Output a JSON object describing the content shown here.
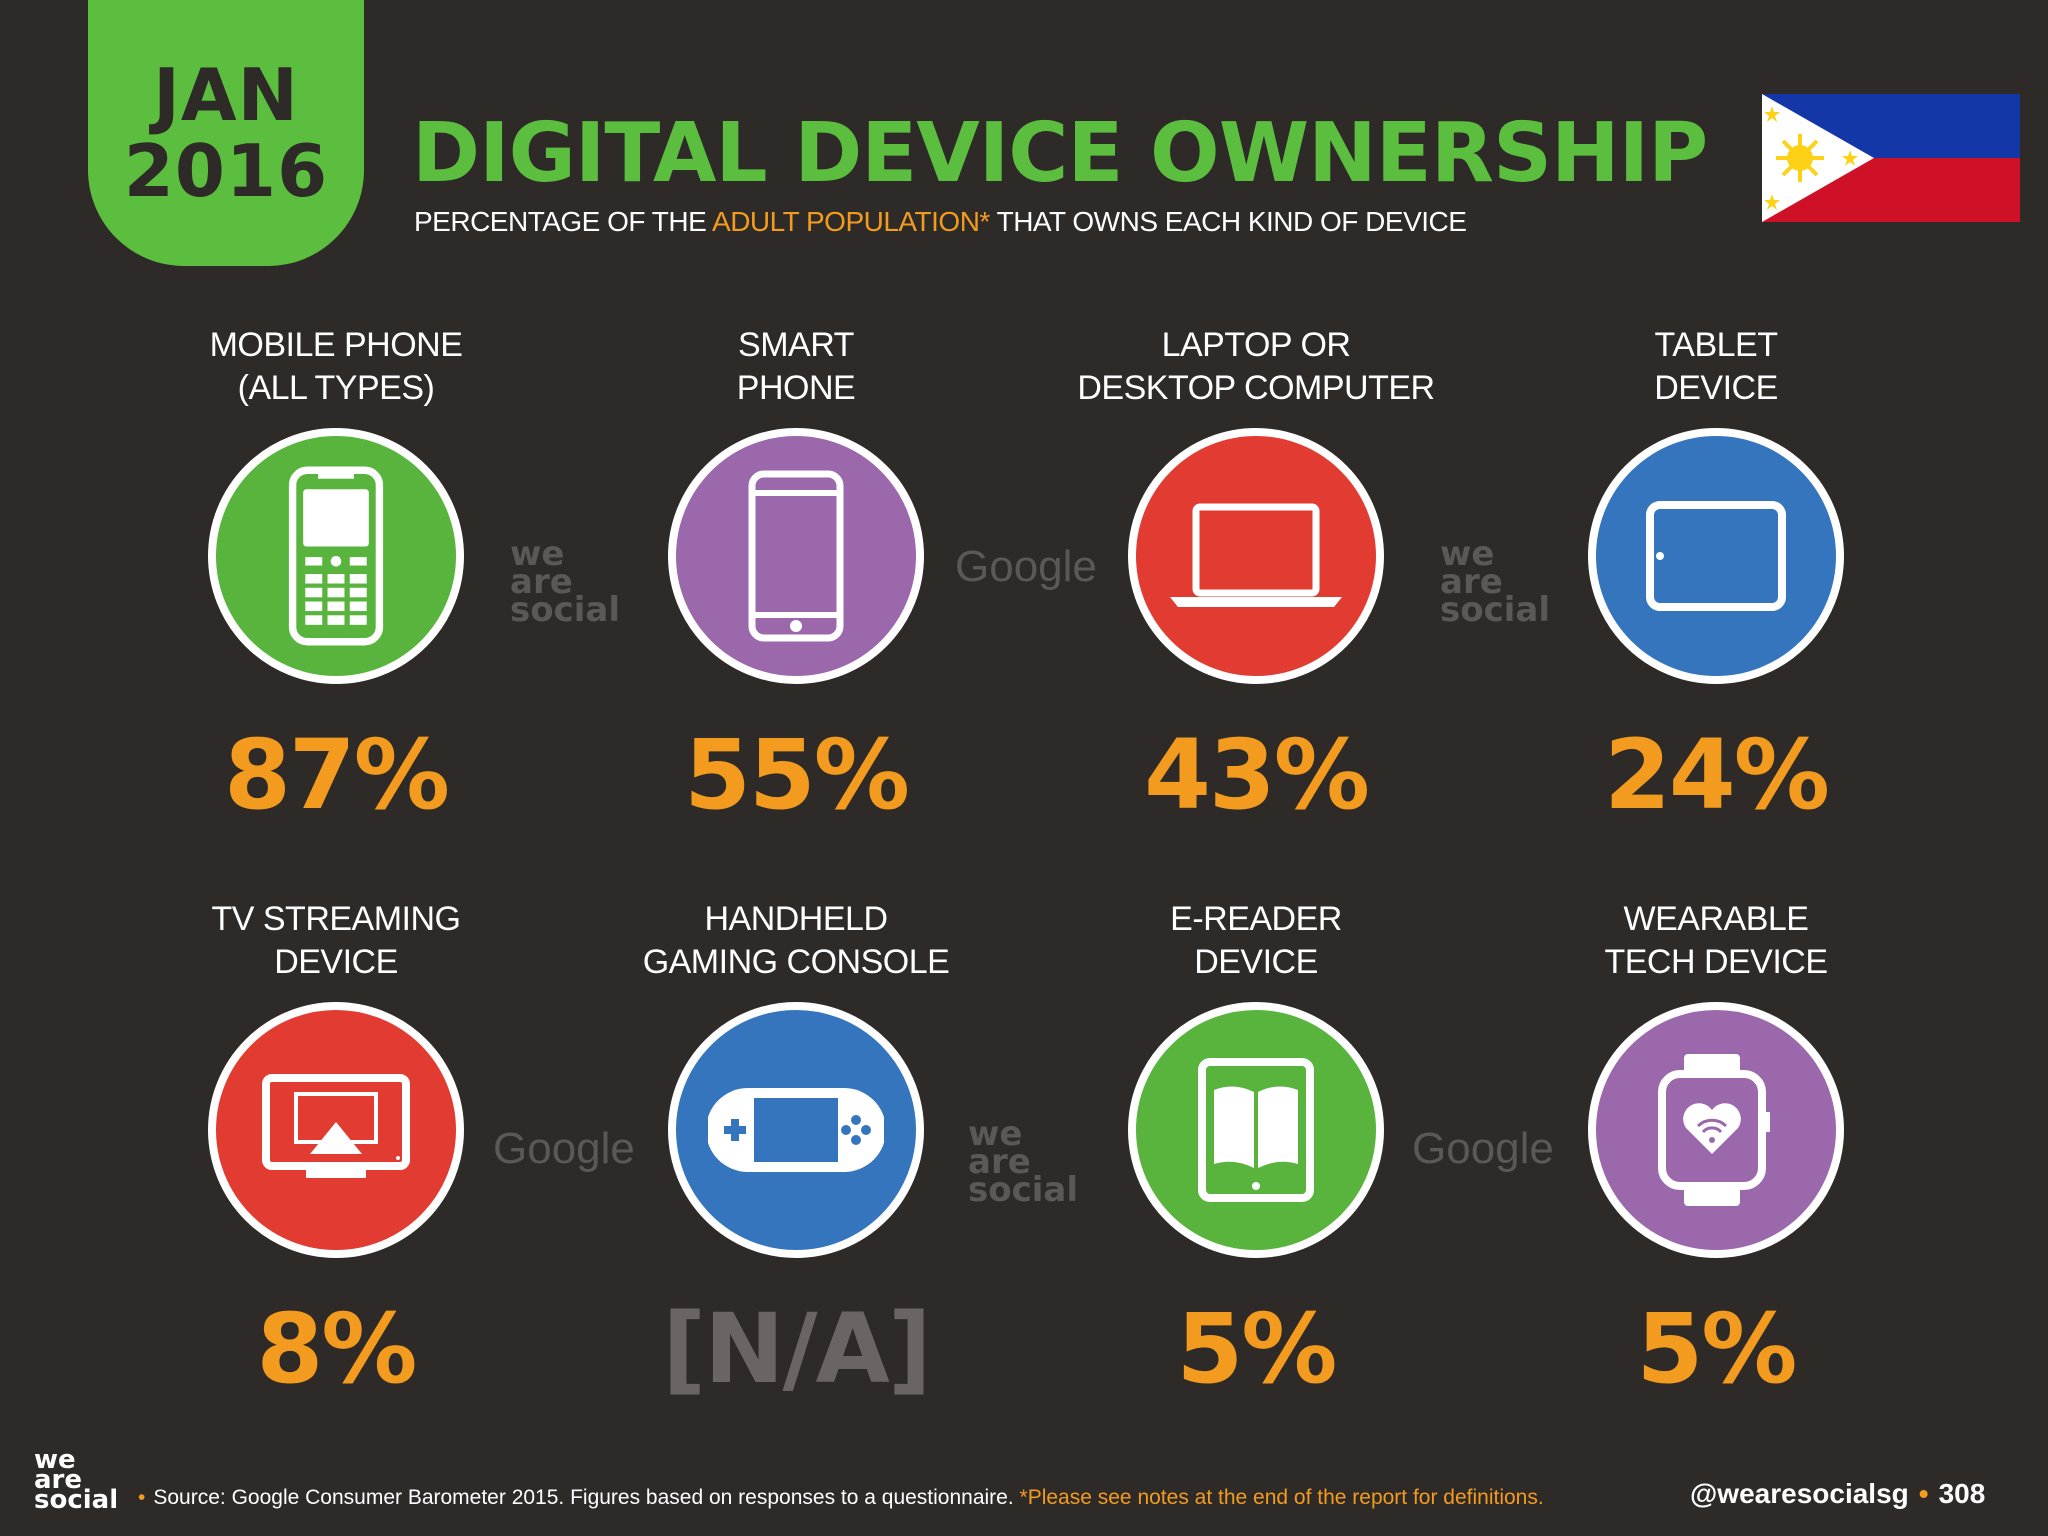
{
  "header": {
    "date_month": "JAN",
    "date_year": "2016",
    "title": "DIGITAL DEVICE OWNERSHIP",
    "subtitle_before": "PERCENTAGE OF THE ",
    "subtitle_highlight": "ADULT POPULATION*",
    "subtitle_after": " THAT OWNS EACH KIND OF DEVICE"
  },
  "flag_icon": "philippines-flag",
  "devices": [
    {
      "label_line1": "MOBILE PHONE",
      "label_line2": "(ALL TYPES)",
      "value": "87%",
      "percent": 87,
      "icon": "mobile-phone-icon",
      "color": "#58b43d"
    },
    {
      "label_line1": "SMART",
      "label_line2": "PHONE",
      "value": "55%",
      "percent": 55,
      "icon": "smartphone-icon",
      "color": "#9b68ac"
    },
    {
      "label_line1": "LAPTOP OR",
      "label_line2": "DESKTOP COMPUTER",
      "value": "43%",
      "percent": 43,
      "icon": "laptop-icon",
      "color": "#e23b32"
    },
    {
      "label_line1": "TABLET",
      "label_line2": "DEVICE",
      "value": "24%",
      "percent": 24,
      "icon": "tablet-icon",
      "color": "#3575bd"
    },
    {
      "label_line1": "TV STREAMING",
      "label_line2": "DEVICE",
      "value": "8%",
      "percent": 8,
      "icon": "tv-streaming-icon",
      "color": "#e23b32"
    },
    {
      "label_line1": "HANDHELD",
      "label_line2": "GAMING CONSOLE",
      "value": "[N/A]",
      "percent": null,
      "icon": "gaming-console-icon",
      "color": "#3575bd"
    },
    {
      "label_line1": "E-READER",
      "label_line2": "DEVICE",
      "value": "5%",
      "percent": 5,
      "icon": "e-reader-icon",
      "color": "#58b43d"
    },
    {
      "label_line1": "WEARABLE",
      "label_line2": "TECH DEVICE",
      "value": "5%",
      "percent": 5,
      "icon": "smartwatch-icon",
      "color": "#9b68ac"
    }
  ],
  "watermarks": {
    "was_line1": "we",
    "was_line2": "are",
    "was_line3": "social",
    "google": "Google"
  },
  "footer": {
    "logo_line1": "we",
    "logo_line2": "are",
    "logo_line3": "social",
    "source_dot": "•",
    "source_text": "Source: Google Consumer Barometer 2015. Figures based on responses to a questionnaire. ",
    "source_note": "*Please see notes at the end of the report for definitions.",
    "handle": "@wearesocialsg",
    "handle_dot": "•",
    "page_number": "308"
  },
  "colors": {
    "background": "#2d2a28",
    "accent_green": "#5cbe3f",
    "accent_orange": "#f39b1f"
  }
}
